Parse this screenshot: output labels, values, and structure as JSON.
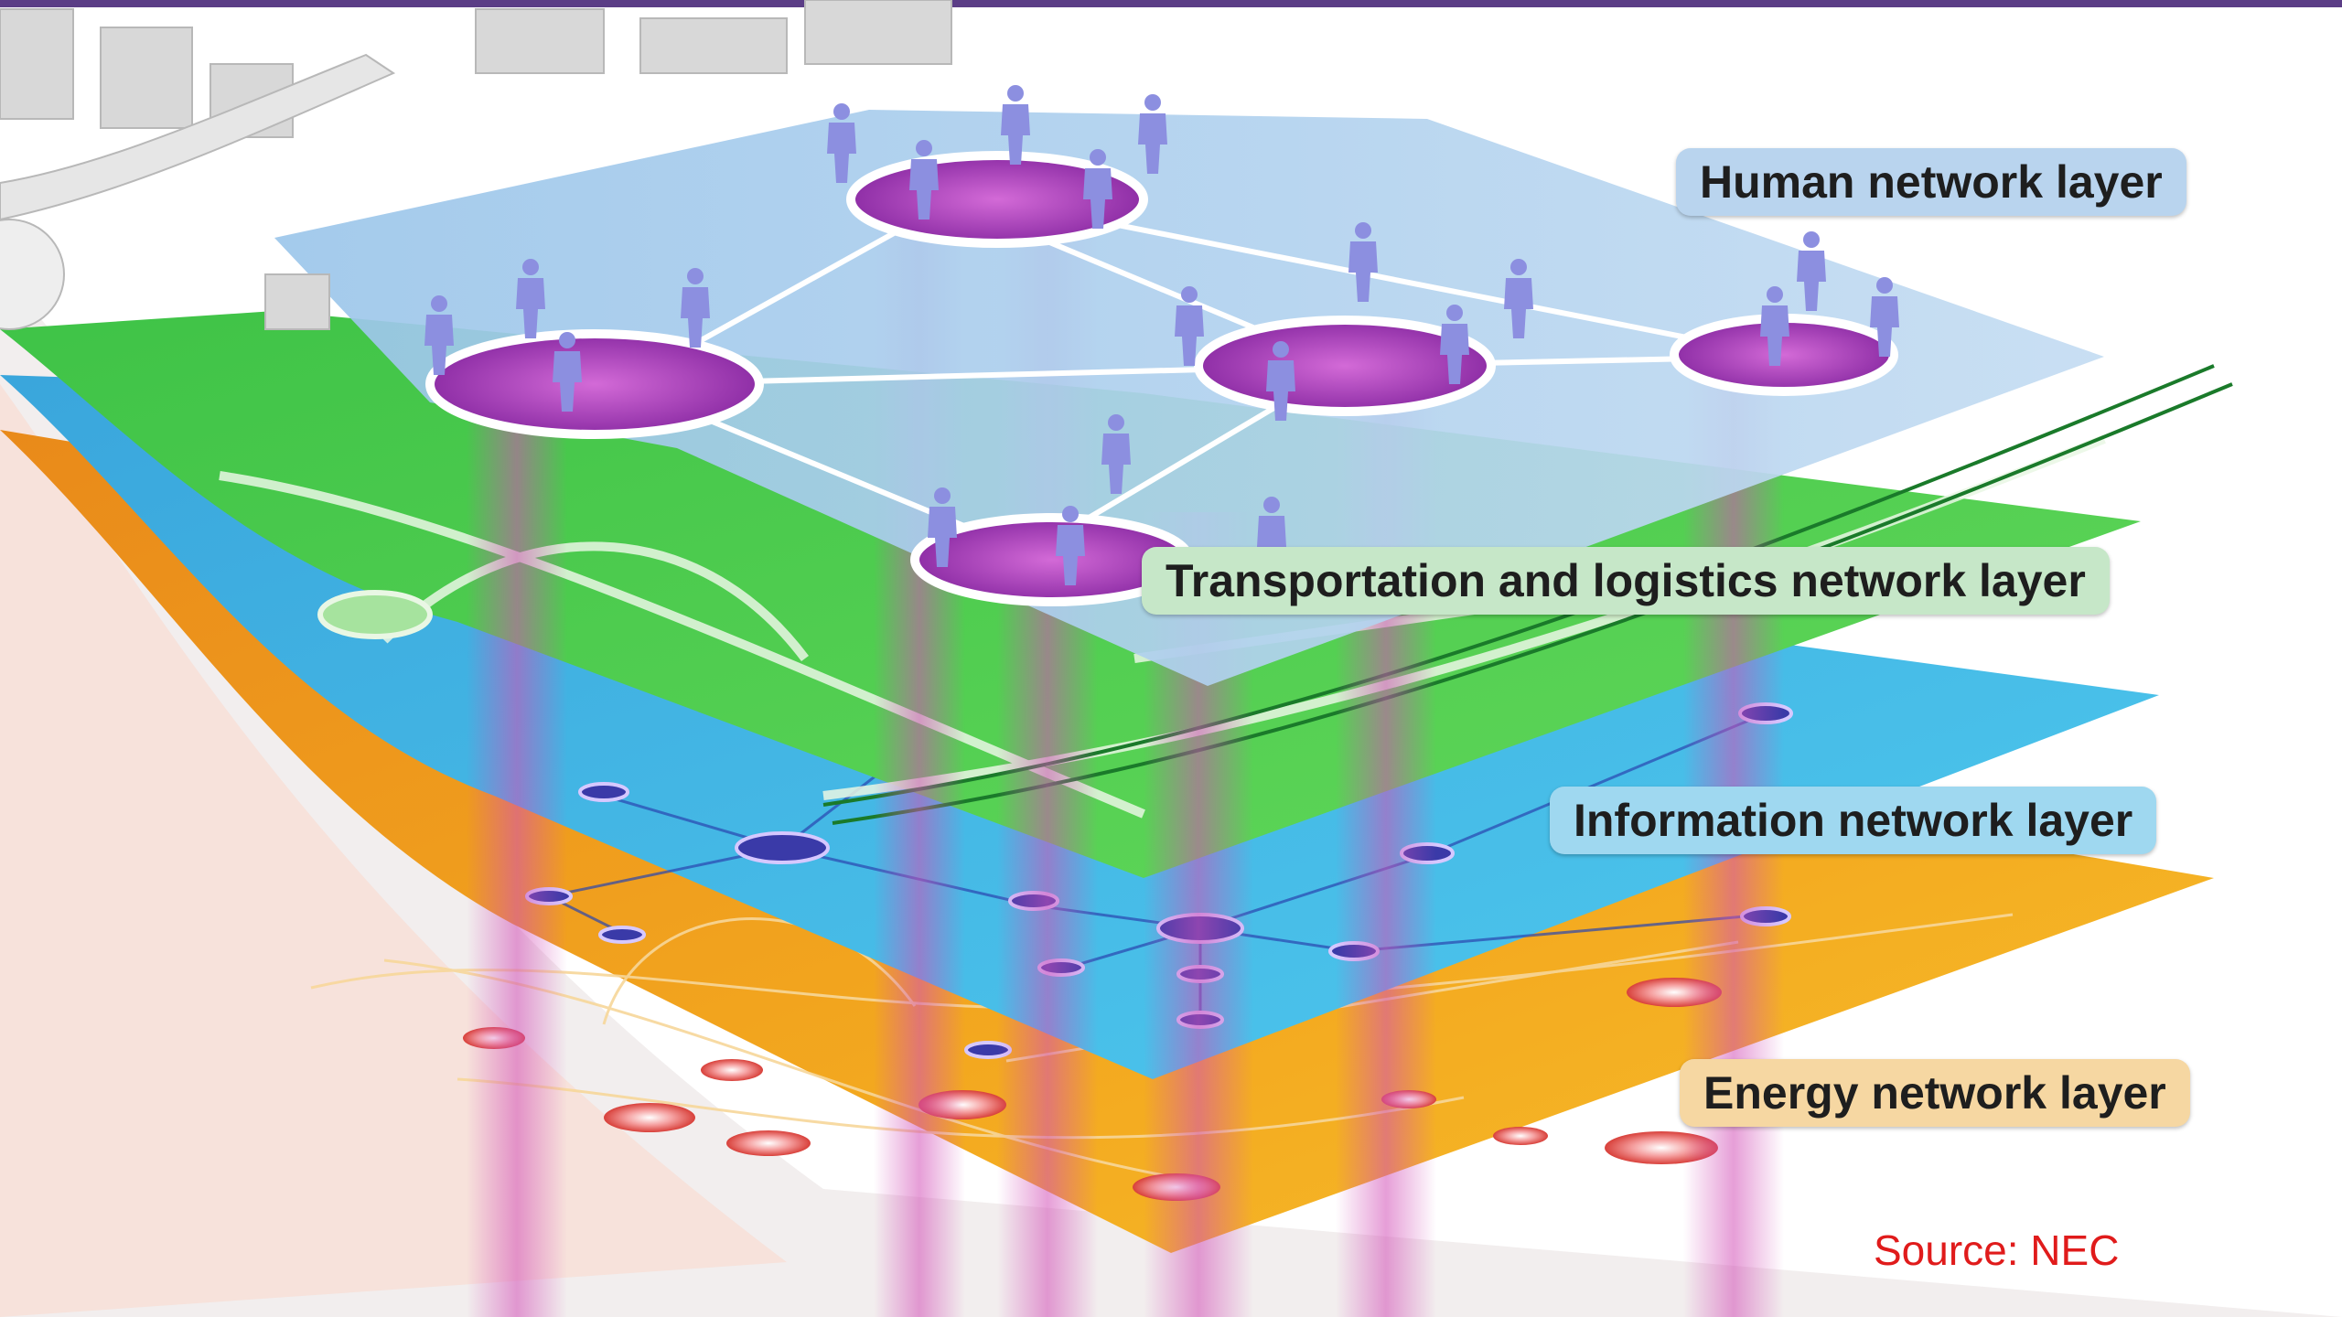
{
  "diagram": {
    "labels": {
      "human": "Human network layer",
      "transport": "Transportation and logistics network layer",
      "information": "Information network layer",
      "energy": "Energy network layer"
    },
    "source": "Source: NEC"
  },
  "colors": {
    "top_bar": "#5b3d86",
    "human_layer": "#a9ccec",
    "transport_layer": "#4fcf4a",
    "information_layer": "#39b8e8",
    "energy_layer": "#f1a424",
    "people": "#8c8fe0",
    "hubs": "#a63fb8",
    "source_text": "#e01b1b"
  }
}
